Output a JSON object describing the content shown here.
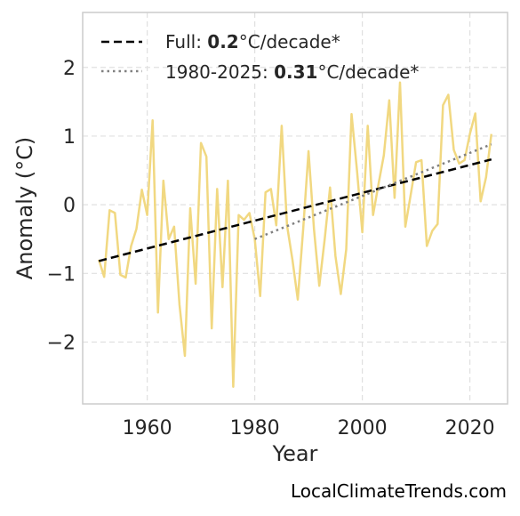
{
  "chart_data": {
    "type": "line",
    "xlabel": "Year",
    "ylabel": "Anomaly (°C)",
    "xlim": [
      1948,
      2027
    ],
    "ylim": [
      -2.9,
      2.8
    ],
    "xticks": [
      1960,
      1980,
      2000,
      2020
    ],
    "yticks": [
      2,
      1,
      0,
      -1,
      -2
    ],
    "ytick_labels": [
      "2",
      "1",
      "0",
      "−1",
      "−2"
    ],
    "grid": true,
    "legend_position": "top-left",
    "series": [
      {
        "style": "line",
        "color": "#f0d67a",
        "x": [
          1951,
          1952,
          1953,
          1954,
          1955,
          1956,
          1957,
          1958,
          1959,
          1960,
          1961,
          1962,
          1963,
          1964,
          1965,
          1966,
          1967,
          1968,
          1969,
          1970,
          1971,
          1972,
          1973,
          1974,
          1975,
          1976,
          1977,
          1978,
          1979,
          1980,
          1981,
          1982,
          1983,
          1984,
          1985,
          1986,
          1987,
          1988,
          1989,
          1990,
          1991,
          1992,
          1993,
          1994,
          1995,
          1996,
          1997,
          1998,
          1999,
          2000,
          2001,
          2002,
          2003,
          2004,
          2005,
          2006,
          2007,
          2008,
          2009,
          2010,
          2011,
          2012,
          2013,
          2014,
          2015,
          2016,
          2017,
          2018,
          2019,
          2020,
          2021,
          2022,
          2023,
          2024
        ],
        "values": [
          -0.8,
          -1.05,
          -0.08,
          -0.12,
          -1.02,
          -1.06,
          -0.6,
          -0.35,
          0.22,
          -0.15,
          1.23,
          -1.57,
          0.35,
          -0.5,
          -0.32,
          -1.45,
          -2.2,
          -0.05,
          -1.15,
          0.9,
          0.7,
          -1.8,
          0.23,
          -1.2,
          0.35,
          -2.65,
          -0.15,
          -0.22,
          -0.12,
          -0.5,
          -1.33,
          0.18,
          0.23,
          -0.3,
          1.15,
          -0.3,
          -0.8,
          -1.38,
          -0.35,
          0.78,
          -0.35,
          -1.18,
          -0.5,
          0.25,
          -0.75,
          -1.3,
          -0.65,
          1.32,
          0.5,
          -0.4,
          1.15,
          -0.15,
          0.3,
          0.72,
          1.52,
          0.1,
          1.78,
          -0.32,
          0.15,
          0.62,
          0.65,
          -0.6,
          -0.38,
          -0.28,
          1.45,
          1.6,
          0.8,
          0.6,
          0.65,
          1.03,
          1.33,
          0.05,
          0.4,
          1.03
        ]
      },
      {
        "style": "dashed",
        "color": "#000000",
        "label_prefix": "Full: ",
        "label_value": "0.2",
        "label_suffix": "°C/decade*",
        "x": [
          1951,
          2024
        ],
        "values": [
          -0.82,
          0.66
        ]
      },
      {
        "style": "dotted",
        "color": "#808080",
        "label_prefix": "1980-2025: ",
        "label_value": "0.31",
        "label_suffix": "°C/decade*",
        "x": [
          1980,
          2024
        ],
        "values": [
          -0.5,
          0.88
        ]
      }
    ]
  },
  "source": "LocalClimateTrends.com"
}
